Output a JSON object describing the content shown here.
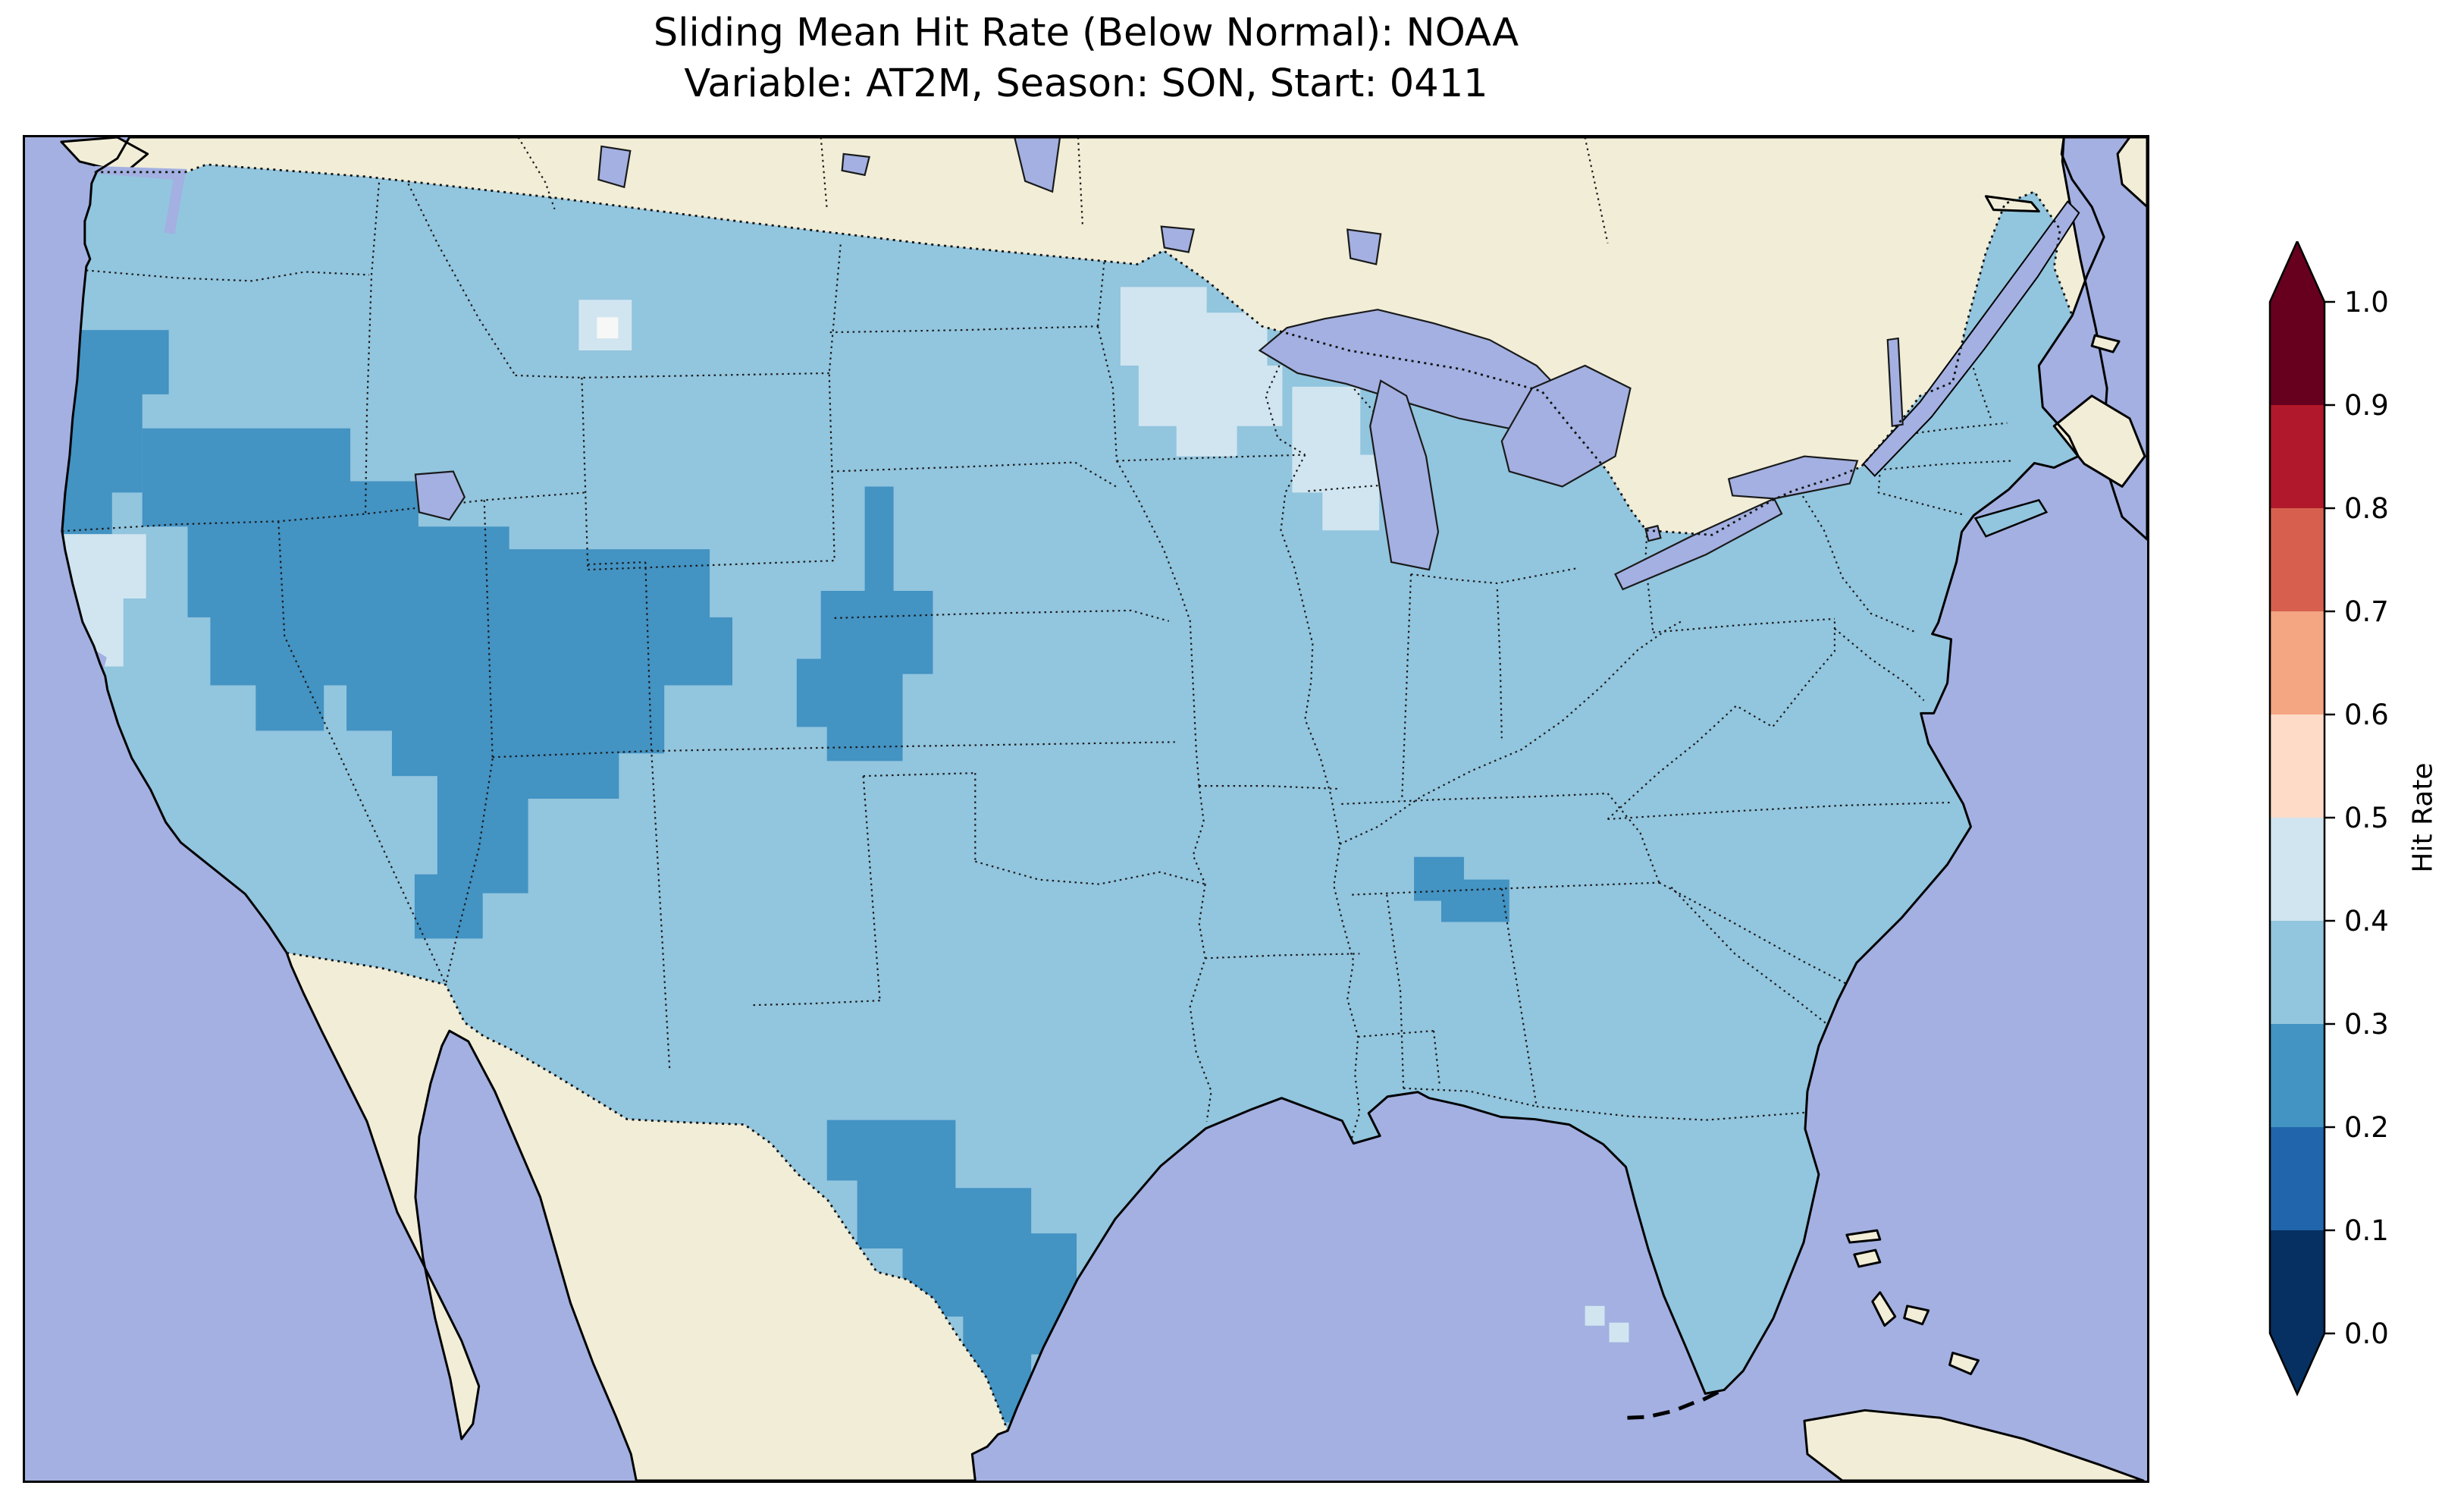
{
  "figure": {
    "title_line1": "Sliding Mean Hit Rate (Below Normal): NOAA",
    "title_line2": "Variable: AT2M, Season: SON, Start: 0411"
  },
  "map": {
    "colors": {
      "ocean": "#a3b0e1",
      "land": "#f1edd7",
      "coastline": "#000000",
      "state_border": "#1a1a1a",
      "near_white_cell": "#f7f7f7"
    },
    "features": [
      "Contiguous United States gridded hit-rate data",
      "Dotted state and province borders",
      "Solid coastlines",
      "Great Lakes",
      "Great Salt Lake",
      "Canada",
      "Mexico with Baja California",
      "Cuba",
      "Bahamas",
      "Florida Keys"
    ]
  },
  "chart_data": {
    "type": "heatmap",
    "title": "Sliding Mean Hit Rate (Below Normal): NOAA",
    "subtitle": "Variable: AT2M, Season: SON, Start: 0411",
    "source": "NOAA",
    "variable": "AT2M",
    "season": "SON",
    "start": "0411",
    "metric": "Sliding Mean Hit Rate (Below Normal)",
    "value_range": [
      0.0,
      1.0
    ],
    "bin_width": 0.1,
    "colorbar": {
      "label": "Hit Rate",
      "orientation": "vertical",
      "position": "right",
      "extend": "both",
      "tick_labels": [
        "1.0",
        "0.9",
        "0.8",
        "0.7",
        "0.6",
        "0.5",
        "0.4",
        "0.3",
        "0.2",
        "0.1",
        "0.0"
      ],
      "colors_bottom_to_top": [
        "#053061",
        "#2166ac",
        "#4393c3",
        "#92c5de",
        "#d1e5f0",
        "#fddbc7",
        "#f4a582",
        "#d6604d",
        "#b2182b",
        "#67001f"
      ],
      "under_color": "#053061",
      "over_color": "#67001f"
    },
    "regions_by_bin": [
      {
        "bin": "0.3-0.4",
        "color": "#92c5de",
        "areas": [
          "Most of the contiguous United States"
        ]
      },
      {
        "bin": "0.2-0.3",
        "color": "#4393c3",
        "areas": [
          "Southern Nevada",
          "Arizona",
          "Western New Mexico",
          "Southeastern California",
          "Northern California coast",
          "South-central Colorado",
          "South Texas along the Rio Grande",
          "Small patch in central Alabama"
        ]
      },
      {
        "bin": "0.4-0.5",
        "color": "#d1e5f0",
        "areas": [
          "Northeastern Minnesota and northern Wisconsin",
          "Eastern Wisconsin near Lake Michigan",
          "Small patch in southwestern Montana",
          "Central California coast",
          "Two cells off the southwest Florida coast"
        ]
      },
      {
        "bin": "~0.5 near-white",
        "color": "#f7f7f7",
        "areas": [
          "Single cell in southwestern Montana"
        ]
      }
    ]
  }
}
